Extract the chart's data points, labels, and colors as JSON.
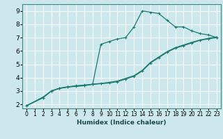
{
  "xlabel": "Humidex (Indice chaleur)",
  "bg_color": "#cce8ec",
  "grid_color": "#ffffff",
  "line_color": "#1a7a6e",
  "xlim": [
    -0.5,
    23.5
  ],
  "ylim": [
    1.7,
    9.5
  ],
  "xticks": [
    0,
    1,
    2,
    3,
    4,
    5,
    6,
    7,
    8,
    9,
    10,
    11,
    12,
    13,
    14,
    15,
    16,
    17,
    18,
    19,
    20,
    21,
    22,
    23
  ],
  "yticks": [
    2,
    3,
    4,
    5,
    6,
    7,
    8,
    9
  ],
  "line1_x": [
    0,
    2,
    3,
    4,
    5,
    6,
    7,
    8,
    9,
    10,
    11,
    12,
    13,
    14,
    15,
    16,
    17,
    18,
    19,
    20,
    21,
    22,
    23
  ],
  "line1_y": [
    1.9,
    2.5,
    3.0,
    3.2,
    3.3,
    3.4,
    3.45,
    3.5,
    6.5,
    6.7,
    6.9,
    7.0,
    7.8,
    9.0,
    8.9,
    8.8,
    8.3,
    7.8,
    7.8,
    7.5,
    7.3,
    7.2,
    7.0
  ],
  "line2_x": [
    0,
    2,
    3,
    4,
    5,
    6,
    7,
    8,
    9,
    10,
    11,
    12,
    13,
    14,
    15,
    16,
    17,
    18,
    19,
    20,
    21,
    22,
    23
  ],
  "line2_y": [
    1.9,
    2.5,
    3.0,
    3.2,
    3.3,
    3.35,
    3.4,
    3.5,
    3.55,
    3.6,
    3.7,
    3.9,
    4.1,
    4.5,
    5.1,
    5.5,
    5.9,
    6.2,
    6.4,
    6.6,
    6.8,
    6.9,
    7.0
  ],
  "line3_x": [
    0,
    2,
    3,
    4,
    5,
    6,
    7,
    8,
    9,
    10,
    11,
    12,
    13,
    14,
    15,
    16,
    17,
    18,
    19,
    20,
    21,
    22,
    23
  ],
  "line3_y": [
    1.9,
    2.55,
    3.0,
    3.22,
    3.32,
    3.37,
    3.42,
    3.52,
    3.57,
    3.65,
    3.75,
    3.95,
    4.15,
    4.55,
    5.15,
    5.55,
    5.95,
    6.25,
    6.45,
    6.65,
    6.82,
    6.95,
    7.05
  ],
  "xlabel_fontsize": 6.5,
  "tick_fontsize_x": 5.5,
  "tick_fontsize_y": 6.5
}
